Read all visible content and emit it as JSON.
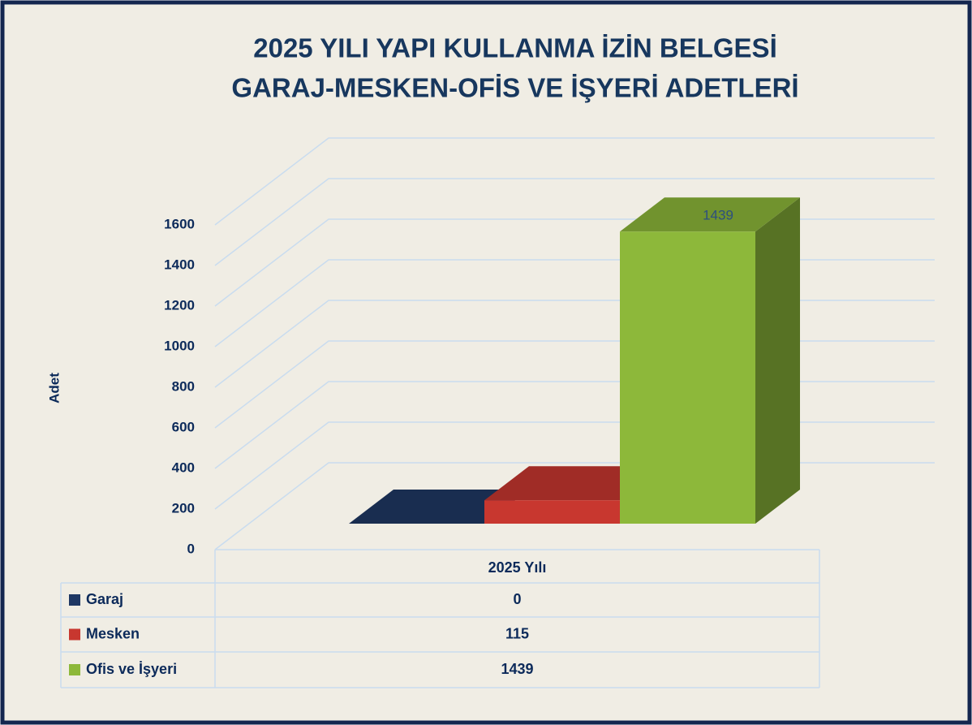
{
  "chart_data": {
    "type": "bar3d",
    "title": [
      "2025 YILI YAPI KULLANMA İZİN BELGESİ",
      "GARAJ-MESKEN-OFİS VE İŞYERİ ADETLERİ"
    ],
    "y_label": "Adet",
    "categories": [
      "2025 Yılı"
    ],
    "series": [
      {
        "name": "Garaj",
        "color": "#1f3864",
        "values": [
          0
        ]
      },
      {
        "name": "Mesken",
        "color": "#c8372f",
        "values": [
          115
        ]
      },
      {
        "name": "Ofis ve İşyeri",
        "color": "#8db83a",
        "values": [
          1439
        ],
        "data_labels": true
      }
    ],
    "ylim": [
      0,
      1600
    ],
    "yticks": [
      0,
      200,
      400,
      600,
      800,
      1000,
      1200,
      1400,
      1600
    ],
    "grid": true,
    "data_table": true
  }
}
